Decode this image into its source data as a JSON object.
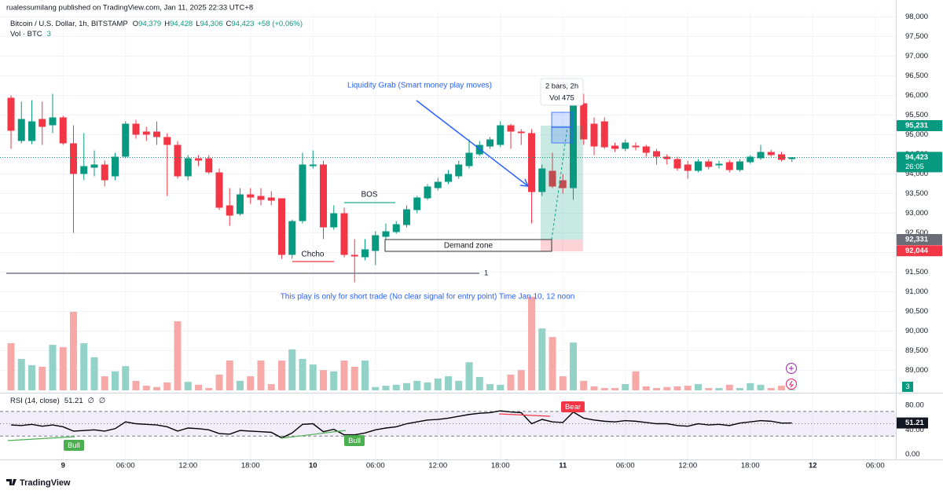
{
  "header": {
    "publisher": "rualessumilang published on TradingView.com, Jan 11, 2025 22:33 UTC+8",
    "symbol": "Bitcoin / U.S. Dollar, 1h, BITSTAMP",
    "open_label": "O",
    "open": "94,379",
    "high_label": "H",
    "high": "94,428",
    "low_label": "L",
    "low": "94,306",
    "close_label": "C",
    "close": "94,423",
    "change": "+58 (+0.06%)",
    "volume_label": "Vol · BTC",
    "rsi_label": "RSI (14, close)",
    "rsi_extra_1": "∅",
    "rsi_extra_2": "∅",
    "countdown": "26:05"
  },
  "drawings": {
    "liquidity": "Liquidity Grab (Smart money play moves)",
    "bos": "BOS",
    "choch": "Chcho",
    "demand": "Demand zone",
    "note": "This play is only for short trade (No clear signal for entry point) Time Jan 10, 12 noon",
    "line_label": "1",
    "measure_bars": "2 bars, 2h",
    "measure_vol": "Vol 475",
    "bull_1": "Bull",
    "bull_2": "Bull",
    "bear": "Bear"
  },
  "footer": "TradingView",
  "chart_data": [
    {
      "type": "candlestick",
      "categories": [
        null,
        null,
        null,
        null,
        null,
        "9",
        null,
        null,
        null,
        null,
        null,
        "06:00",
        null,
        null,
        null,
        null,
        null,
        "12:00",
        null,
        null,
        null,
        null,
        null,
        "18:00",
        null,
        null,
        null,
        null,
        null,
        "10",
        null,
        null,
        null,
        null,
        null,
        "06:00",
        null,
        null,
        null,
        null,
        null,
        "12:00",
        null,
        null,
        null,
        null,
        null,
        "18:00",
        null,
        null,
        null,
        null,
        null,
        "11",
        null,
        null,
        null,
        null,
        null,
        "06:00",
        null,
        null,
        null,
        null,
        null,
        "12:00",
        null,
        null,
        null,
        null,
        null,
        "18:00",
        null,
        null,
        null,
        null,
        null,
        "12",
        null,
        null,
        null,
        null,
        null,
        "06:00"
      ],
      "open": [
        95940,
        94840,
        94840,
        95400,
        95240,
        95440,
        94780,
        94000,
        94160,
        94240,
        93940,
        94440,
        95280,
        95080,
        95080,
        94940,
        94740,
        93940,
        94400,
        94400,
        94040,
        93200,
        92980,
        93480,
        93440,
        93400,
        93380,
        91940,
        92800,
        94200,
        94240,
        92640,
        93000,
        91940,
        91880,
        92040,
        92400,
        92520,
        92700,
        93080,
        93380,
        93640,
        93800,
        93940,
        94200,
        94500,
        94700,
        94740,
        95240,
        95080,
        95040,
        93540,
        94080,
        93840,
        93640,
        95800,
        95280,
        95340,
        94720,
        94640,
        94720,
        94700,
        94580,
        94440,
        94380,
        94240,
        94080,
        94320,
        94220,
        94300,
        94100,
        94300,
        94400,
        94560,
        94500,
        94379,
        null,
        null,
        null,
        null,
        null,
        null,
        null,
        null
      ],
      "high": [
        96000,
        95840,
        95880,
        95840,
        96040,
        95480,
        95240,
        95040,
        94600,
        94340,
        94540,
        95340,
        95380,
        95200,
        95340,
        95040,
        94840,
        94480,
        94480,
        94480,
        94140,
        93640,
        93640,
        93640,
        93640,
        93560,
        93380,
        92840,
        94540,
        94600,
        94340,
        93200,
        93140,
        92340,
        92340,
        92540,
        92740,
        92800,
        93200,
        93440,
        93740,
        93900,
        94100,
        94340,
        94880,
        94840,
        94940,
        95340,
        95280,
        95140,
        95140,
        94240,
        94540,
        94000,
        95840,
        96040,
        95440,
        95440,
        94800,
        94880,
        94800,
        94740,
        94640,
        94500,
        94440,
        94340,
        94380,
        94380,
        94340,
        94360,
        94380,
        94480,
        94740,
        94620,
        94560,
        94428,
        null,
        null,
        null,
        null,
        null,
        null,
        null,
        null
      ],
      "low": [
        94640,
        94780,
        94760,
        94740,
        95040,
        94740,
        92500,
        93840,
        93940,
        93680,
        93840,
        94400,
        94900,
        94840,
        94740,
        93440,
        93880,
        93840,
        94200,
        94000,
        93080,
        92680,
        92940,
        93240,
        93200,
        93200,
        91840,
        91840,
        92740,
        94140,
        92340,
        92580,
        91880,
        91240,
        91800,
        91680,
        92340,
        92480,
        92640,
        93000,
        93340,
        93580,
        93740,
        93880,
        94140,
        94460,
        94640,
        94680,
        94640,
        94740,
        92740,
        93440,
        93640,
        93500,
        93340,
        94740,
        94480,
        94640,
        94560,
        94580,
        94600,
        94440,
        94240,
        94240,
        94080,
        93880,
        94040,
        94120,
        94140,
        94040,
        94060,
        94260,
        94360,
        94440,
        94320,
        94306,
        null,
        null,
        null,
        null,
        null,
        null,
        null,
        null
      ],
      "close": [
        95100,
        95400,
        95340,
        95200,
        95440,
        94780,
        94000,
        94200,
        94240,
        93840,
        94440,
        95280,
        95000,
        95000,
        94940,
        94740,
        93940,
        94400,
        94340,
        94040,
        93140,
        92940,
        93480,
        93400,
        93340,
        93320,
        91940,
        92800,
        94240,
        94240,
        92640,
        93000,
        91940,
        91900,
        92080,
        92440,
        92540,
        92720,
        93100,
        93400,
        93680,
        93800,
        94000,
        94240,
        94540,
        94740,
        94880,
        95240,
        95080,
        95040,
        93540,
        94140,
        93680,
        93640,
        95740,
        94880,
        94700,
        94680,
        94640,
        94800,
        94680,
        94540,
        94440,
        94380,
        94140,
        94080,
        94320,
        94180,
        94260,
        94100,
        94320,
        94440,
        94560,
        94480,
        94360,
        94423,
        null,
        null,
        null,
        null,
        null,
        null,
        null,
        null
      ],
      "up_color": "#089981",
      "down_color": "#f23645",
      "ylim": [
        88450,
        98150
      ],
      "yticks": [
        {
          "value": 98000,
          "label": "98,000"
        },
        {
          "value": 97500,
          "label": "97,500"
        },
        {
          "value": 97000,
          "label": "97,000"
        },
        {
          "value": 96500,
          "label": "96,500"
        },
        {
          "value": 96000,
          "label": "96,000"
        },
        {
          "value": 95500,
          "label": "95,500"
        },
        {
          "value": 95000,
          "label": "95,000"
        },
        {
          "value": 94500,
          "label": "94,500"
        },
        {
          "value": 94000,
          "label": "94,000"
        },
        {
          "value": 93500,
          "label": "93,500"
        },
        {
          "value": 93000,
          "label": "93,000"
        },
        {
          "value": 92500,
          "label": "92,500"
        },
        {
          "value": 92000,
          "label": "92,000"
        },
        {
          "value": 91500,
          "label": "91,500"
        },
        {
          "value": 91000,
          "label": "91,000"
        },
        {
          "value": 90500,
          "label": "90,500"
        },
        {
          "value": 90000,
          "label": "90,000"
        },
        {
          "value": 89500,
          "label": "89,500"
        },
        {
          "value": 89000,
          "label": "89,000"
        }
      ],
      "price_labels": [
        {
          "value": 95231,
          "label": "95,231",
          "color": "#089981"
        },
        {
          "value": 94423,
          "label": "94,423",
          "color": "#089981"
        },
        {
          "value": 92331,
          "label": "92,331",
          "color": "#6a6d78"
        },
        {
          "value": 92044,
          "label": "92,044",
          "color": "#f23645"
        }
      ],
      "grid": true
    },
    {
      "type": "bar",
      "name": "Vol · BTC",
      "values": [
        144,
        96,
        77,
        72,
        139,
        132,
        240,
        144,
        101,
        43,
        58,
        74,
        29,
        14,
        10,
        24,
        211,
        26,
        17,
        7,
        48,
        91,
        29,
        43,
        91,
        19,
        91,
        125,
        96,
        79,
        62,
        58,
        91,
        72,
        91,
        10,
        14,
        17,
        22,
        29,
        24,
        36,
        43,
        29,
        86,
        41,
        19,
        17,
        48,
        62,
        286,
        189,
        163,
        43,
        146,
        29,
        12,
        7,
        7,
        19,
        58,
        12,
        7,
        10,
        12,
        14,
        19,
        7,
        7,
        17,
        7,
        22,
        17,
        7,
        14,
        3,
        null,
        null,
        null,
        null,
        null,
        null,
        null,
        null
      ],
      "up_color": "#92d2c7",
      "down_color": "#f7a9a7",
      "label_color": "#089981",
      "ylim": [
        0,
        300
      ]
    },
    {
      "type": "line",
      "name": "RSI (14, close)",
      "values": [
        48,
        47,
        49,
        46,
        48,
        45,
        38,
        39,
        40,
        38,
        42,
        53,
        50,
        49,
        48,
        45,
        38,
        43,
        42,
        40,
        34,
        33,
        39,
        38,
        37,
        36,
        27,
        35,
        49,
        50,
        37,
        41,
        32,
        32,
        35,
        40,
        43,
        45,
        50,
        53,
        56,
        57,
        59,
        62,
        65,
        67,
        68,
        71,
        69,
        68,
        50,
        57,
        53,
        52,
        69,
        59,
        56,
        54,
        53,
        55,
        54,
        52,
        50,
        50,
        47,
        46,
        50,
        48,
        49,
        47,
        51,
        53,
        55,
        54,
        51,
        51.21,
        null,
        null,
        null,
        null,
        null,
        null,
        null,
        null
      ],
      "color": "#000000",
      "band": [
        30,
        70
      ],
      "midline": 50,
      "band_color": "#7e57c2",
      "ylim": [
        -8,
        94
      ],
      "yticks": [
        {
          "value": 80,
          "label": "80.00"
        },
        {
          "value": 40,
          "label": "40.00"
        },
        {
          "value": 0,
          "label": "0.00"
        }
      ]
    }
  ]
}
